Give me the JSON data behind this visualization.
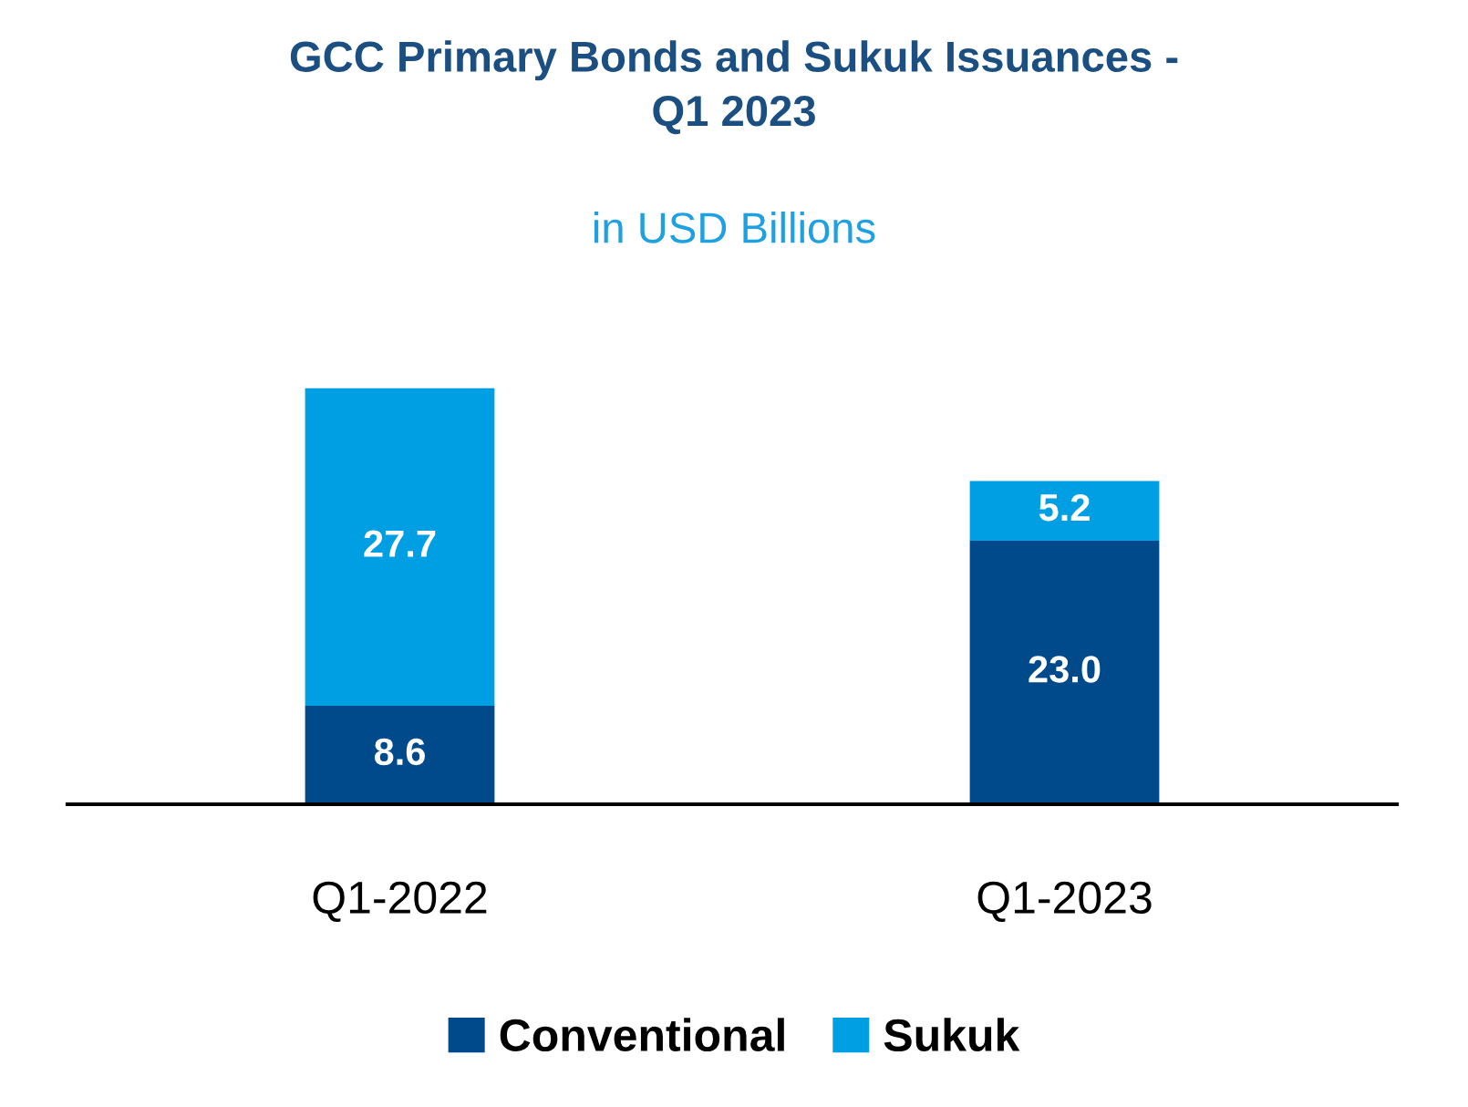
{
  "chart_data": {
    "type": "bar",
    "title": "GCC Primary Bonds and Sukuk Issuances -\nQ1 2023",
    "subtitle": "in USD Billions",
    "categories": [
      "Q1-2022",
      "Q1-2023"
    ],
    "stacked": true,
    "series": [
      {
        "name": "Conventional",
        "color": "#004a8c",
        "values": [
          8.6,
          23.0
        ],
        "value_labels": [
          "8.6",
          "23.0"
        ]
      },
      {
        "name": "Sukuk",
        "color": "#009fe3",
        "values": [
          27.7,
          5.2
        ],
        "value_labels": [
          "27.7",
          "5.2"
        ]
      }
    ],
    "legend": "bottom",
    "grid": false
  }
}
